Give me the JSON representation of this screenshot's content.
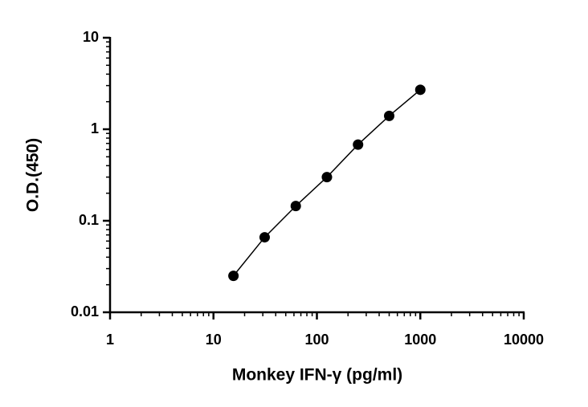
{
  "chart_data": {
    "type": "scatter",
    "x_label": "Monkey IFN-γ (pg/ml)",
    "y_label": "O.D.(450)",
    "x": [
      15.6,
      31.25,
      62.5,
      125,
      250,
      500,
      1000
    ],
    "series": [
      {
        "name": "O.D.(450)",
        "color": "#000000",
        "values": [
          0.025,
          0.066,
          0.145,
          0.3,
          0.68,
          1.4,
          2.7
        ]
      }
    ],
    "xlim": [
      1,
      10000
    ],
    "xticks": [
      1,
      10,
      100,
      1000,
      10000
    ],
    "ylim": [
      0.01,
      10
    ],
    "yticks": [
      0.01,
      0.1,
      1,
      10
    ],
    "xscale": "log",
    "yscale": "log",
    "line": true,
    "grid": false
  }
}
